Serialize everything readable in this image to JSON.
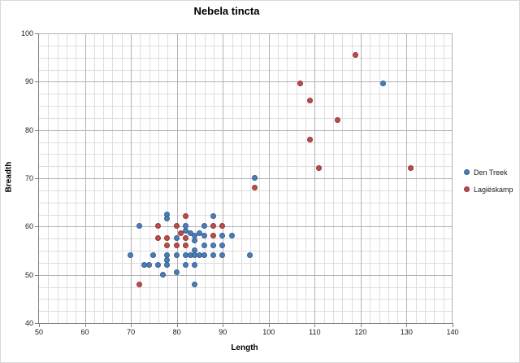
{
  "title": "Nebela tincta",
  "chart_data": {
    "type": "scatter",
    "title": "Nebela tincta",
    "xlabel": "Length",
    "ylabel": "Breadth",
    "x_axis": {
      "min": 50,
      "max": 140,
      "major_unit": 10,
      "minor_unit": 2,
      "ticks": [
        50,
        60,
        70,
        80,
        90,
        100,
        110,
        120,
        130,
        140
      ]
    },
    "y_axis": {
      "min": 40,
      "max": 100,
      "major_unit": 10,
      "minor_unit": 2.5,
      "ticks": [
        40,
        50,
        60,
        70,
        80,
        90,
        100
      ]
    },
    "grid": "major-and-minor",
    "legend_position": "right",
    "series": [
      {
        "name": "Den Treek",
        "color": "#4a7ebb",
        "points": [
          [
            70,
            54
          ],
          [
            72,
            60
          ],
          [
            73,
            52
          ],
          [
            74,
            52
          ],
          [
            75,
            54
          ],
          [
            76,
            52
          ],
          [
            77,
            50
          ],
          [
            78,
            62.5
          ],
          [
            78,
            61.5
          ],
          [
            78,
            54
          ],
          [
            78,
            53
          ],
          [
            78,
            52
          ],
          [
            80,
            57.5
          ],
          [
            80,
            54
          ],
          [
            80,
            50.5
          ],
          [
            82,
            60
          ],
          [
            82,
            59
          ],
          [
            82,
            54
          ],
          [
            82,
            52
          ],
          [
            83,
            58.5
          ],
          [
            83,
            54
          ],
          [
            84,
            58
          ],
          [
            84,
            57
          ],
          [
            84,
            55
          ],
          [
            84,
            54
          ],
          [
            84,
            52
          ],
          [
            84,
            48
          ],
          [
            85,
            58.5
          ],
          [
            85,
            54
          ],
          [
            86,
            60
          ],
          [
            86,
            58
          ],
          [
            86,
            56
          ],
          [
            86,
            54
          ],
          [
            88,
            62
          ],
          [
            88,
            56
          ],
          [
            88,
            54
          ],
          [
            90,
            58
          ],
          [
            90,
            56
          ],
          [
            90,
            54
          ],
          [
            92,
            58
          ],
          [
            96,
            54
          ],
          [
            97,
            70
          ],
          [
            125,
            89.5
          ]
        ]
      },
      {
        "name": "Lagiëskamp",
        "color": "#be4b48",
        "points": [
          [
            72,
            48
          ],
          [
            76,
            60
          ],
          [
            76,
            57.5
          ],
          [
            78,
            57.5
          ],
          [
            78,
            56
          ],
          [
            80,
            60
          ],
          [
            80,
            56
          ],
          [
            81,
            58.5
          ],
          [
            82,
            62
          ],
          [
            82,
            57.5
          ],
          [
            82,
            56
          ],
          [
            88,
            60
          ],
          [
            88,
            58
          ],
          [
            90,
            60
          ],
          [
            97,
            68
          ],
          [
            107,
            89.5
          ],
          [
            109,
            86
          ],
          [
            109,
            78
          ],
          [
            111,
            72
          ],
          [
            115,
            82
          ],
          [
            119,
            95.5
          ],
          [
            131,
            72
          ]
        ]
      }
    ]
  },
  "colors": {
    "series1": "#4a7ebb",
    "series2": "#be4b48",
    "gridline_minor": "#dedede",
    "gridline_major": "#b3b3b3",
    "axis_line": "#808080",
    "text": "#1a1a1a"
  }
}
